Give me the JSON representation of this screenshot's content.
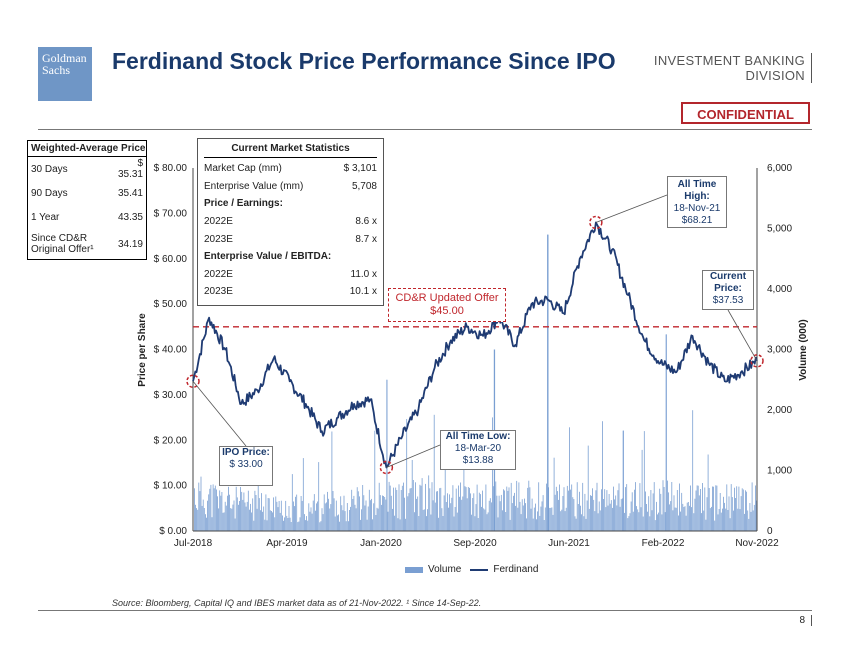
{
  "header": {
    "logo_line1": "Goldman",
    "logo_line2": "Sachs",
    "title": "Ferdinand Stock Price Performance Since IPO",
    "division_line1": "INVESTMENT BANKING",
    "division_line2": "DIVISION",
    "confidential": "CONFIDENTIAL"
  },
  "weighted_average": {
    "title": "Weighted-Average Price",
    "rows": [
      {
        "label": "30 Days",
        "value": "$ 35.31"
      },
      {
        "label": "90 Days",
        "value": "35.41"
      },
      {
        "label": "1 Year",
        "value": "43.35"
      },
      {
        "label": "Since CD&R Original Offer¹",
        "value": "34.19"
      }
    ]
  },
  "market_stats": {
    "title": "Current Market Statistics",
    "rows": [
      {
        "label": "Market Cap (mm)",
        "value": "$ 3,101"
      },
      {
        "label": "Enterprise Value (mm)",
        "value": "5,708"
      },
      {
        "label": "Price / Earnings:",
        "value": ""
      },
      {
        "label": "2022E",
        "value": "8.6 x"
      },
      {
        "label": "2023E",
        "value": "8.7 x"
      },
      {
        "label": "Enterprise Value / EBITDA:",
        "value": ""
      },
      {
        "label": "2022E",
        "value": "11.0 x"
      },
      {
        "label": "2023E",
        "value": "10.1 x"
      }
    ]
  },
  "annotations": {
    "ipo": {
      "title": "IPO Price:",
      "value": "$ 33.00"
    },
    "low": {
      "title": "All Time Low:",
      "date": "18-Mar-20",
      "value": "$13.88"
    },
    "high": {
      "title": "All Time High:",
      "date": "18-Nov-21",
      "value": "$68.21"
    },
    "current": {
      "title": "Current Price:",
      "value": "$37.53"
    },
    "offer": {
      "line1": "CD&R Updated Offer",
      "line2": "$45.00"
    }
  },
  "legend": {
    "volume": "Volume",
    "price": "Ferdinand"
  },
  "footer": {
    "source": "Source: Bloomberg, Capital IQ and IBES market data as of 21-Nov-2022. ¹ Since 14-Sep-22.",
    "page": "8"
  },
  "colors": {
    "line": "#1f3b73",
    "volume": "#7a9fd2",
    "offer": "#c0262c"
  },
  "chart_data": {
    "type": "line",
    "title": "Ferdinand Stock Price Performance Since IPO",
    "ylabel": "Price per Share",
    "y2label": "Volume (000)",
    "ylim": [
      0,
      80
    ],
    "y2lim": [
      0,
      6000
    ],
    "yticks": [
      "$ 0.00",
      "$ 10.00",
      "$ 20.00",
      "$ 30.00",
      "$ 40.00",
      "$ 50.00",
      "$ 60.00",
      "$ 70.00",
      "$ 80.00"
    ],
    "y2ticks": [
      "0",
      "1,000",
      "2,000",
      "3,000",
      "4,000",
      "5,000",
      "6,000"
    ],
    "xticks": [
      "Jul-2018",
      "Apr-2019",
      "Jan-2020",
      "Sep-2020",
      "Jun-2021",
      "Feb-2022",
      "Nov-2022"
    ],
    "offer_level": 45,
    "series": [
      {
        "name": "Ferdinand",
        "x": [
          0,
          1.5,
          3,
          4.5,
          6,
          7.5,
          9,
          10.5,
          12,
          13.5,
          15,
          16.5,
          18,
          19.5,
          21,
          22.5,
          24,
          25.5,
          27,
          28.5,
          30,
          31.5,
          33,
          34.5,
          36,
          37.5,
          39,
          40.5,
          42,
          43.5,
          45,
          46.5,
          48,
          49.5,
          51,
          52.5
        ],
        "values": [
          33,
          47,
          40,
          28,
          31,
          38,
          33,
          28,
          22,
          25,
          28,
          29,
          14,
          21,
          27,
          36,
          42,
          45,
          43,
          47,
          41,
          50,
          51,
          48,
          60,
          68,
          62,
          52,
          42,
          37,
          35,
          43,
          37,
          33,
          35,
          37.5
        ]
      },
      {
        "name": "Volume",
        "x": [
          0,
          3,
          6,
          9,
          12,
          15,
          18,
          20,
          24,
          28,
          30,
          33,
          36,
          40,
          44,
          48,
          52.5
        ],
        "values": [
          700,
          560,
          480,
          430,
          470,
          520,
          2500,
          630,
          710,
          3000,
          820,
          4900,
          760,
          1660,
          3250,
          540,
          600
        ]
      }
    ]
  }
}
